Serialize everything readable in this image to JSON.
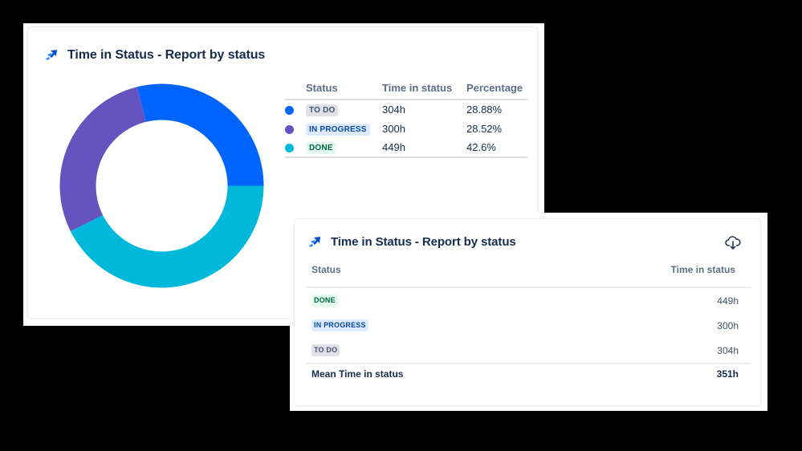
{
  "colors": {
    "todo": "#0065FF",
    "in_progress": "#6554C0",
    "done": "#00B8D9",
    "title_text": "#172B4D",
    "header_text": "#5E6C84"
  },
  "card1": {
    "title": "Time in Status - Report by status",
    "logo_icon": "time-in-status-logo-icon",
    "table": {
      "headers": [
        "",
        "Status",
        "Time in status",
        "Percentage"
      ],
      "rows": [
        {
          "status": "TO DO",
          "time": "304h",
          "percentage": "28.88%",
          "color": "#0065FF"
        },
        {
          "status": "IN PROGRESS",
          "time": "300h",
          "percentage": "28.52%",
          "color": "#6554C0"
        },
        {
          "status": "DONE",
          "time": "449h",
          "percentage": "42.6%",
          "color": "#00B8D9"
        }
      ]
    }
  },
  "card2": {
    "title": "Time in Status - Report by status",
    "logo_icon": "time-in-status-logo-icon",
    "download_icon": "cloud-download-icon",
    "table": {
      "headers": [
        "Status",
        "Time in status"
      ],
      "rows": [
        {
          "status": "DONE",
          "time": "449h"
        },
        {
          "status": "IN PROGRESS",
          "time": "300h"
        },
        {
          "status": "TO DO",
          "time": "304h"
        }
      ],
      "footer": {
        "label": "Mean Time in status",
        "value": "351h"
      }
    }
  },
  "chart_data": {
    "type": "pie",
    "subtype": "donut",
    "title": "Time in Status - Report by status",
    "categories": [
      "TO DO",
      "IN PROGRESS",
      "DONE"
    ],
    "values": [
      304,
      300,
      449
    ],
    "percentages": [
      28.88,
      28.52,
      42.6
    ],
    "unit": "h",
    "colors": [
      "#0065FF",
      "#6554C0",
      "#00B8D9"
    ],
    "start_angle": "3 o'clock, clockwise: DONE, IN PROGRESS, TO DO",
    "legend_position": "right (table)"
  }
}
